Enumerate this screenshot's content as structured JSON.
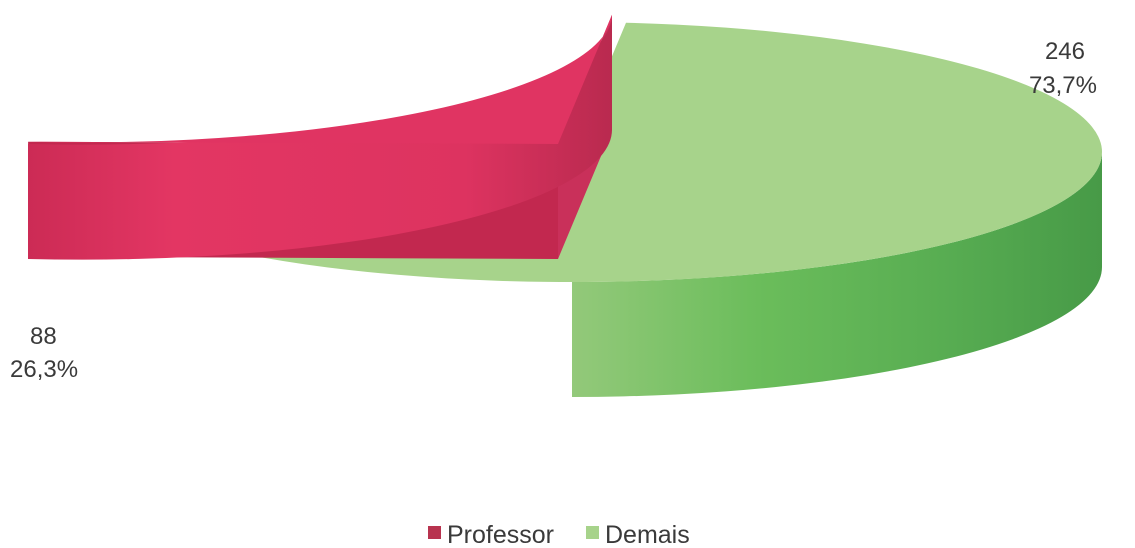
{
  "chart_data": {
    "type": "pie",
    "style": "3d-exploded",
    "title": "",
    "slices": [
      {
        "name": "Professor",
        "value": 88,
        "percent_label": "26,3%",
        "color": "#e03462",
        "side_color": "#c2284f",
        "legend_color": "#b8334f"
      },
      {
        "name": "Demais",
        "value": 246,
        "percent_label": "73,7%",
        "color": "#a7d38b",
        "side_color": "#4fa14f",
        "legend_color": "#a7d38b"
      }
    ],
    "legend_position": "bottom"
  }
}
